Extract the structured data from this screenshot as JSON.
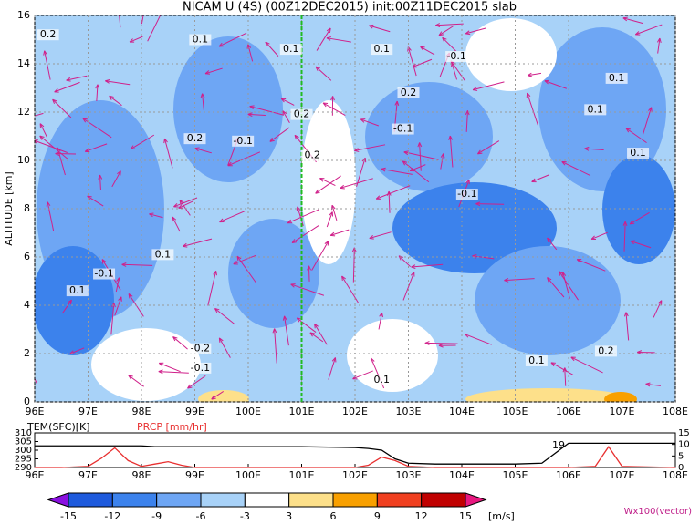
{
  "chart_data": [
    {
      "type": "contour",
      "title": "NICAM U (4S) (00Z12DEC2015) init:00Z11DEC2015 slab",
      "ylabel": "ALTITUDE [km]",
      "xlim": [
        96,
        108
      ],
      "xticks": [
        {
          "value": 96,
          "label": "96E"
        },
        {
          "value": 97,
          "label": "97E"
        },
        {
          "value": 98,
          "label": "98E"
        },
        {
          "value": 99,
          "label": "99E"
        },
        {
          "value": 100,
          "label": "100E"
        },
        {
          "value": 101,
          "label": "101E"
        },
        {
          "value": 102,
          "label": "102E"
        },
        {
          "value": 103,
          "label": "103E"
        },
        {
          "value": 104,
          "label": "104E"
        },
        {
          "value": 105,
          "label": "105E"
        },
        {
          "value": 106,
          "label": "106E"
        },
        {
          "value": 107,
          "label": "107E"
        },
        {
          "value": 108,
          "label": "108E"
        }
      ],
      "ylim": [
        0,
        16
      ],
      "yticks": [
        0,
        2,
        4,
        6,
        8,
        10,
        12,
        14,
        16
      ],
      "grid": true,
      "highlight_x": 101,
      "highlight_color": "#22bb22",
      "contour_labels": [
        {
          "x": 96.25,
          "y": 15.2,
          "text": "0.2"
        },
        {
          "x": 99.1,
          "y": 15.0,
          "text": "0.1"
        },
        {
          "x": 100.8,
          "y": 14.6,
          "text": "0.1"
        },
        {
          "x": 102.5,
          "y": 14.6,
          "text": "0.1"
        },
        {
          "x": 103.9,
          "y": 14.3,
          "text": "-0.1"
        },
        {
          "x": 106.9,
          "y": 13.4,
          "text": "0.1"
        },
        {
          "x": 103.0,
          "y": 12.8,
          "text": "0.2"
        },
        {
          "x": 101.0,
          "y": 11.9,
          "text": "0.2"
        },
        {
          "x": 99.0,
          "y": 10.9,
          "text": "0.2"
        },
        {
          "x": 99.9,
          "y": 10.8,
          "text": "-0.1"
        },
        {
          "x": 101.2,
          "y": 10.2,
          "text": "0.2"
        },
        {
          "x": 102.9,
          "y": 11.3,
          "text": "-0.1"
        },
        {
          "x": 104.1,
          "y": 8.6,
          "text": "-0.1"
        },
        {
          "x": 98.4,
          "y": 6.1,
          "text": "0.1"
        },
        {
          "x": 97.3,
          "y": 5.3,
          "text": "-0.1"
        },
        {
          "x": 96.8,
          "y": 4.6,
          "text": "0.1"
        },
        {
          "x": 99.1,
          "y": 2.2,
          "text": "-0.2"
        },
        {
          "x": 99.1,
          "y": 1.4,
          "text": "-0.1"
        },
        {
          "x": 102.5,
          "y": 0.9,
          "text": "0.1"
        },
        {
          "x": 105.4,
          "y": 1.7,
          "text": "0.1"
        },
        {
          "x": 106.7,
          "y": 2.1,
          "text": "0.2"
        },
        {
          "x": 106.5,
          "y": 12.1,
          "text": "0.1"
        },
        {
          "x": 107.3,
          "y": 10.3,
          "text": "0.1"
        }
      ]
    },
    {
      "type": "line",
      "xlim": [
        96,
        108
      ],
      "xticks": [
        {
          "value": 96,
          "label": "96E"
        },
        {
          "value": 97,
          "label": "97E"
        },
        {
          "value": 98,
          "label": "98E"
        },
        {
          "value": 99,
          "label": "99E"
        },
        {
          "value": 100,
          "label": "100E"
        },
        {
          "value": 101,
          "label": "101E"
        },
        {
          "value": 102,
          "label": "102E"
        },
        {
          "value": 103,
          "label": "103E"
        },
        {
          "value": 104,
          "label": "104E"
        },
        {
          "value": 105,
          "label": "105E"
        },
        {
          "value": 106,
          "label": "106E"
        },
        {
          "value": 107,
          "label": "107E"
        },
        {
          "value": 108,
          "label": "108E"
        }
      ],
      "ylim": [
        290,
        310
      ],
      "yticks": [
        290,
        295,
        300,
        305,
        310
      ],
      "y2lim": [
        0,
        15
      ],
      "y2ticks": [
        0,
        5,
        10,
        15
      ],
      "x": [
        96,
        96.5,
        97,
        97.25,
        97.5,
        97.75,
        98,
        98.25,
        98.5,
        98.75,
        99,
        100,
        101,
        102,
        102.25,
        102.5,
        102.75,
        103,
        103.5,
        104,
        105,
        105.5,
        106,
        106.5,
        106.75,
        107,
        108
      ],
      "series": [
        {
          "name": "TEM(SFC)[K]",
          "color": "#000000",
          "values": [
            302.5,
            302.5,
            302.5,
            302.5,
            302.5,
            302.5,
            302.5,
            302,
            302,
            302,
            302,
            302,
            302,
            301.5,
            301,
            300,
            295,
            292.5,
            292,
            292,
            292,
            292.5,
            304,
            304,
            304,
            304,
            304
          ]
        },
        {
          "name": "PRCP [mm/hr]",
          "color": "#e83030",
          "axis": "y2",
          "values": [
            0,
            0,
            0.5,
            4,
            8.5,
            3,
            0.5,
            1.5,
            2.5,
            1,
            0,
            0,
            0,
            0,
            1,
            4.5,
            3,
            0.5,
            0,
            0,
            0,
            0,
            0,
            0.5,
            9,
            0.5,
            0
          ]
        }
      ],
      "annotation": {
        "x": 106,
        "text": "19"
      }
    },
    {
      "type": "colorbar",
      "levels": [
        -15,
        -12,
        -9,
        -6,
        -3,
        3,
        6,
        9,
        12,
        15
      ],
      "colors": [
        "#8a10e0",
        "#1e5adc",
        "#3c82ec",
        "#6ea6f4",
        "#a8d2f8",
        "#ffffff",
        "#fde08a",
        "#f8a000",
        "#f04020",
        "#c00000",
        "#e81880"
      ],
      "units": "[m/s]",
      "vector_label": "Wx100(vector)"
    }
  ]
}
